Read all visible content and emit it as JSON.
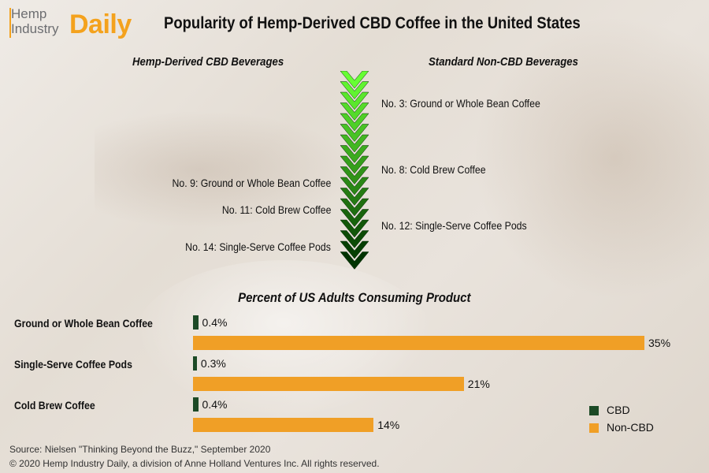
{
  "brand": {
    "logo_line1": "Hemp",
    "logo_line2": "Industry",
    "logo_word": "Daily"
  },
  "title": "Popularity of Hemp-Derived CBD Coffee in the United States",
  "columns": {
    "left_heading": "Hemp-Derived CBD Beverages",
    "right_heading": "Standard Non-CBD Beverages"
  },
  "rankings": {
    "cbd": [
      {
        "label": "No. 9: Ground or Whole Bean Coffee",
        "rank": 9
      },
      {
        "label": "No. 11: Cold Brew Coffee",
        "rank": 11
      },
      {
        "label": "No. 14: Single-Serve Coffee Pods",
        "rank": 14
      }
    ],
    "non_cbd": [
      {
        "label": "No. 3: Ground or Whole Bean Coffee",
        "rank": 3
      },
      {
        "label": "No. 8: Cold Brew Coffee",
        "rank": 8
      },
      {
        "label": "No. 12: Single-Serve Coffee Pods",
        "rank": 12
      }
    ]
  },
  "chevron_colors": [
    "#66ff33",
    "#003300"
  ],
  "chart_data": {
    "type": "bar",
    "orientation": "horizontal",
    "title": "Percent of US Adults Consuming Product",
    "categories": [
      "Ground or Whole Bean Coffee",
      "Single-Serve Coffee Pods",
      "Cold Brew Coffee"
    ],
    "series": [
      {
        "name": "CBD",
        "values": [
          0.4,
          0.3,
          0.4
        ],
        "labels": [
          "0.4%",
          "0.3%",
          "0.4%"
        ],
        "color": "#1c4a26"
      },
      {
        "name": "Non-CBD",
        "values": [
          35,
          21,
          14
        ],
        "labels": [
          "35%",
          "21%",
          "14%"
        ],
        "color": "#f09f26"
      }
    ],
    "xlim": [
      0,
      35
    ],
    "legend_position": "bottom-right",
    "grid": false
  },
  "footer": {
    "source": "Source: Nielsen \"Thinking Beyond the Buzz,\" September 2020",
    "copyright": "© 2020 Hemp Industry Daily, a division of Anne Holland Ventures Inc. All rights reserved."
  }
}
